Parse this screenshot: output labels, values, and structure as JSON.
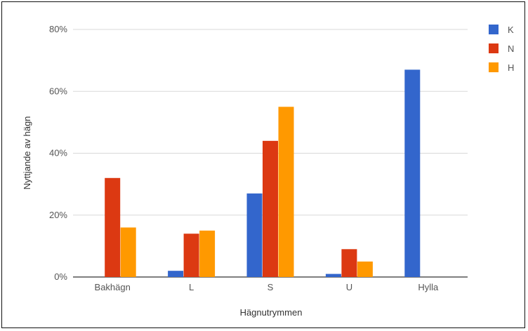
{
  "chart_data": {
    "type": "bar",
    "title": "",
    "xlabel": "Hägnutrymmen",
    "ylabel": "Nyttjande av hägn",
    "categories": [
      "Bakhägn",
      "L",
      "S",
      "U",
      "Hylla"
    ],
    "series": [
      {
        "name": "K",
        "color": "#3366cc",
        "values": [
          0,
          2,
          27,
          1,
          67
        ]
      },
      {
        "name": "N",
        "color": "#dc3912",
        "values": [
          32,
          14,
          44,
          9,
          0
        ]
      },
      {
        "name": "H",
        "color": "#ff9900",
        "values": [
          16,
          15,
          55,
          5,
          0
        ]
      }
    ],
    "ylim": [
      0,
      80
    ],
    "yticks": [
      0,
      20,
      40,
      60,
      80
    ],
    "ytick_labels": [
      "0%",
      "20%",
      "40%",
      "60%",
      "80%"
    ],
    "grid": true,
    "legend_position": "right"
  }
}
